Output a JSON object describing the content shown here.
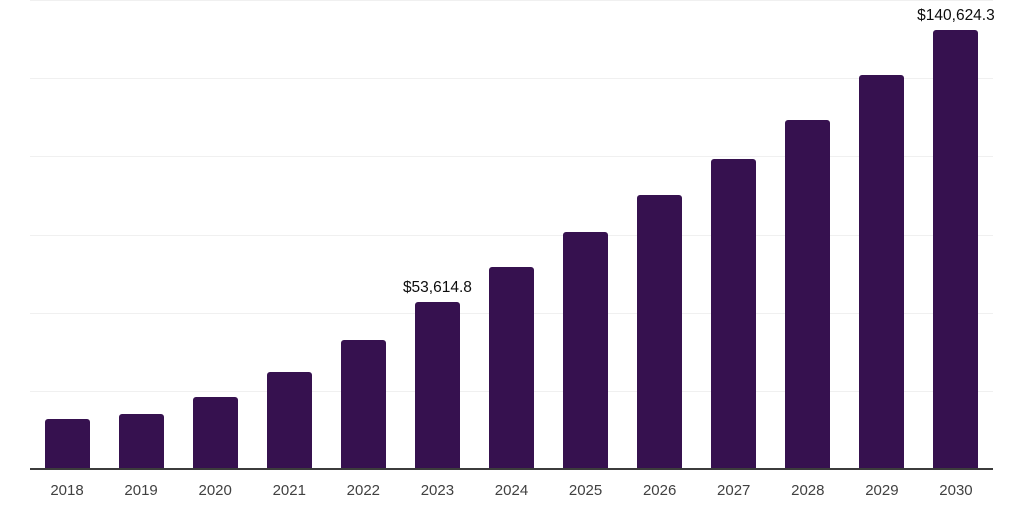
{
  "chart_data": {
    "type": "bar",
    "title": "",
    "xlabel": "",
    "ylabel": "",
    "categories": [
      "2018",
      "2019",
      "2020",
      "2021",
      "2022",
      "2023",
      "2024",
      "2025",
      "2026",
      "2027",
      "2028",
      "2029",
      "2030"
    ],
    "values": [
      16300,
      17900,
      23400,
      31400,
      41600,
      53614.8,
      65000,
      76200,
      87800,
      99600,
      112100,
      126200,
      140624.3
    ],
    "annotations": [
      {
        "category": "2023",
        "text": "$53,614.8"
      },
      {
        "category": "2030",
        "text": "$140,624.3"
      }
    ],
    "ylim": [
      0,
      150000
    ],
    "gridline_step": 25000,
    "grid": "horizontal",
    "legend": "none",
    "y_tick_labels_visible": false
  },
  "colors": {
    "bar": "#36114F",
    "gridline": "#F0F0F0",
    "axis_line": "#3C3C3C",
    "tick_label": "#414141",
    "value_label": "#0D0D0D",
    "background": "#FFFFFF"
  }
}
